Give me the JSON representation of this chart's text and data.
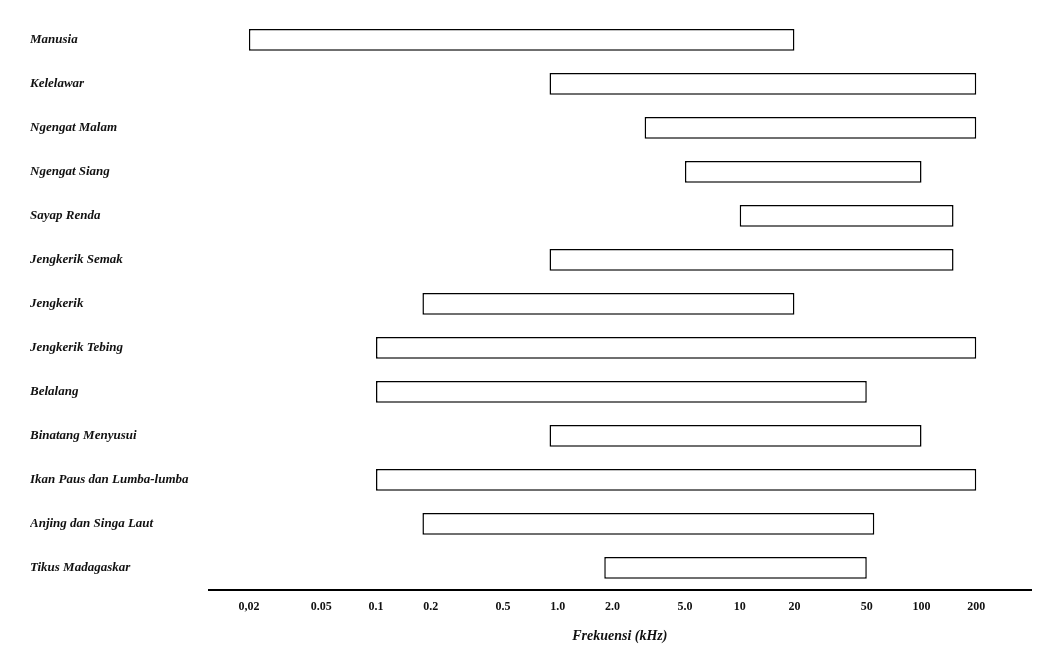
{
  "chart_data": {
    "type": "bar",
    "orientation": "horizontal",
    "xlabel": "Frekuensi (kHz)",
    "categories": [
      "Manusia",
      "Kelelawar",
      "Ngengat Malam",
      "Ngengat Siang",
      "Sayap Renda",
      "Jengkerik Semak",
      "Jengkerik",
      "Jengkerik Tebing",
      "Belalang",
      "Binatang Menyusui",
      "Ikan Paus dan Lumba-lumba",
      "Anjing dan Singa Laut",
      "Tikus Madagaskar"
    ],
    "base": [
      0.02,
      0.9,
      3,
      5,
      10,
      0.9,
      0.18,
      0.1,
      0.1,
      0.9,
      0.1,
      0.18,
      1.8
    ],
    "values": [
      19.98,
      199.1,
      197,
      95,
      140,
      149.1,
      19.82,
      199.9,
      49.9,
      99.1,
      199.9,
      54.82,
      48.2
    ],
    "color": "#ffffff",
    "log": "x",
    "xlim": [
      0.012,
      400
    ],
    "xticks": [
      {
        "value": 0.02,
        "label": "0,02"
      },
      0.05,
      0.1,
      0.2,
      0.5,
      {
        "value": 1,
        "label": "1.0"
      },
      {
        "value": 2,
        "label": "2.0"
      },
      {
        "value": 5,
        "label": "5.0"
      },
      10,
      20,
      50,
      100,
      200
    ],
    "grid": false,
    "legend": false
  }
}
